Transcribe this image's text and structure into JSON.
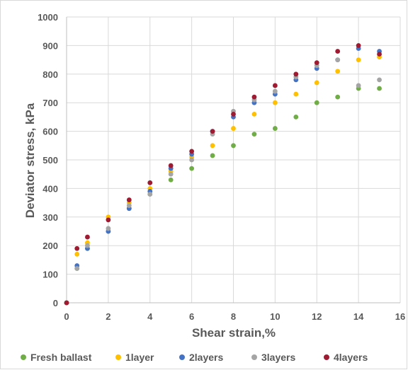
{
  "chart_data": {
    "type": "scatter",
    "xlabel": "Shear strain,%",
    "ylabel": "Deviator stress, kPa",
    "xlim": [
      0,
      16
    ],
    "ylim": [
      0,
      1000
    ],
    "xticks": [
      0,
      2,
      4,
      6,
      8,
      10,
      12,
      14,
      16
    ],
    "yticks": [
      0,
      100,
      200,
      300,
      400,
      500,
      600,
      700,
      800,
      900,
      1000
    ],
    "grid": "vertical and horizontal",
    "legend_position": "bottom",
    "series": [
      {
        "name": "Fresh ballast",
        "color": "#70ad47",
        "points": [
          [
            0,
            0
          ],
          [
            0.5,
            120
          ],
          [
            1,
            190
          ],
          [
            2,
            250
          ],
          [
            3,
            330
          ],
          [
            4,
            380
          ],
          [
            5,
            430
          ],
          [
            6,
            470
          ],
          [
            7,
            515
          ],
          [
            8,
            550
          ],
          [
            9,
            590
          ],
          [
            10,
            610
          ],
          [
            11,
            650
          ],
          [
            12,
            700
          ],
          [
            13,
            720
          ],
          [
            14,
            750
          ],
          [
            15,
            750
          ]
        ]
      },
      {
        "name": "1layer",
        "color": "#ffc000",
        "points": [
          [
            0,
            0
          ],
          [
            0.5,
            170
          ],
          [
            1,
            210
          ],
          [
            2,
            300
          ],
          [
            3,
            350
          ],
          [
            4,
            400
          ],
          [
            5,
            460
          ],
          [
            6,
            510
          ],
          [
            7,
            550
          ],
          [
            8,
            610
          ],
          [
            9,
            660
          ],
          [
            10,
            700
          ],
          [
            11,
            730
          ],
          [
            12,
            770
          ],
          [
            13,
            810
          ],
          [
            14,
            850
          ],
          [
            15,
            860
          ]
        ]
      },
      {
        "name": "2layers",
        "color": "#4472c4",
        "points": [
          [
            0,
            0
          ],
          [
            0.5,
            130
          ],
          [
            1,
            190
          ],
          [
            2,
            250
          ],
          [
            3,
            330
          ],
          [
            4,
            390
          ],
          [
            5,
            470
          ],
          [
            6,
            520
          ],
          [
            7,
            600
          ],
          [
            8,
            650
          ],
          [
            9,
            700
          ],
          [
            10,
            730
          ],
          [
            11,
            780
          ],
          [
            12,
            820
          ],
          [
            13,
            850
          ],
          [
            14,
            890
          ],
          [
            15,
            880
          ]
        ]
      },
      {
        "name": "3layers",
        "color": "#a5a5a5",
        "points": [
          [
            0,
            0
          ],
          [
            0.5,
            120
          ],
          [
            1,
            200
          ],
          [
            2,
            260
          ],
          [
            3,
            340
          ],
          [
            4,
            380
          ],
          [
            5,
            450
          ],
          [
            6,
            500
          ],
          [
            7,
            590
          ],
          [
            8,
            670
          ],
          [
            9,
            710
          ],
          [
            10,
            740
          ],
          [
            11,
            790
          ],
          [
            12,
            830
          ],
          [
            13,
            850
          ],
          [
            14,
            760
          ],
          [
            15,
            780
          ]
        ]
      },
      {
        "name": "4layers",
        "color": "#9e1b32",
        "points": [
          [
            0,
            0
          ],
          [
            0.5,
            190
          ],
          [
            1,
            230
          ],
          [
            2,
            290
          ],
          [
            3,
            360
          ],
          [
            4,
            420
          ],
          [
            5,
            480
          ],
          [
            6,
            530
          ],
          [
            7,
            600
          ],
          [
            8,
            660
          ],
          [
            9,
            720
          ],
          [
            10,
            760
          ],
          [
            11,
            800
          ],
          [
            12,
            840
          ],
          [
            13,
            880
          ],
          [
            14,
            900
          ],
          [
            15,
            870
          ]
        ]
      }
    ]
  }
}
